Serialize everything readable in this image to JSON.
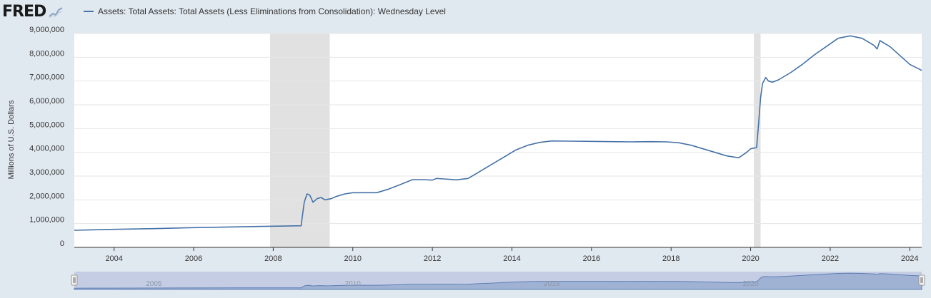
{
  "brand": {
    "logo_text": "FRED",
    "logo_icon": "chart-line-icon"
  },
  "chart_data": {
    "type": "line",
    "title": "",
    "legend": [
      "Assets: Total Assets: Total Assets (Less Eliminations from Consolidation): Wednesday Level"
    ],
    "legend_placement": "top-left",
    "xlabel": "",
    "ylabel": "Millions of U.S. Dollars",
    "xlim": [
      2003.0,
      2024.3
    ],
    "ylim": [
      0,
      9000000
    ],
    "grid": true,
    "y_ticks": [
      "0",
      "1,000,000",
      "2,000,000",
      "3,000,000",
      "4,000,000",
      "5,000,000",
      "6,000,000",
      "7,000,000",
      "8,000,000",
      "9,000,000"
    ],
    "x_ticks": [
      "2004",
      "2006",
      "2008",
      "2010",
      "2012",
      "2014",
      "2016",
      "2018",
      "2020",
      "2022",
      "2024"
    ],
    "recessions": [
      [
        2007.92,
        2009.42
      ],
      [
        2020.08,
        2020.25
      ]
    ],
    "series": [
      {
        "name": "Assets: Total Assets: Total Assets (Less Eliminations from Consolidation): Wednesday Level",
        "color": "#4572a7",
        "x": [
          2003.0,
          2004.0,
          2005.0,
          2006.0,
          2007.0,
          2008.0,
          2008.7,
          2008.78,
          2008.85,
          2008.92,
          2009.0,
          2009.1,
          2009.2,
          2009.3,
          2009.45,
          2009.6,
          2009.8,
          2010.0,
          2010.3,
          2010.6,
          2010.9,
          2011.2,
          2011.5,
          2011.8,
          2012.0,
          2012.1,
          2012.3,
          2012.6,
          2012.9,
          2013.2,
          2013.5,
          2013.8,
          2014.1,
          2014.4,
          2014.7,
          2015.0,
          2015.5,
          2016.0,
          2016.5,
          2017.0,
          2017.5,
          2017.9,
          2018.2,
          2018.5,
          2018.8,
          2019.1,
          2019.4,
          2019.7,
          2019.9,
          2020.0,
          2020.15,
          2020.2,
          2020.25,
          2020.3,
          2020.38,
          2020.45,
          2020.55,
          2020.7,
          2021.0,
          2021.3,
          2021.6,
          2021.9,
          2022.2,
          2022.5,
          2022.8,
          2023.1,
          2023.18,
          2023.25,
          2023.5,
          2023.8,
          2024.0,
          2024.3
        ],
        "values": [
          720000,
          760000,
          790000,
          830000,
          860000,
          890000,
          910000,
          1900000,
          2250000,
          2200000,
          1900000,
          2050000,
          2100000,
          2000000,
          2050000,
          2150000,
          2250000,
          2300000,
          2300000,
          2300000,
          2450000,
          2650000,
          2850000,
          2850000,
          2830000,
          2900000,
          2880000,
          2840000,
          2900000,
          3200000,
          3500000,
          3800000,
          4100000,
          4300000,
          4420000,
          4480000,
          4470000,
          4460000,
          4450000,
          4440000,
          4450000,
          4440000,
          4400000,
          4300000,
          4150000,
          4000000,
          3850000,
          3770000,
          4000000,
          4150000,
          4200000,
          5200000,
          6300000,
          6900000,
          7150000,
          7000000,
          6950000,
          7050000,
          7350000,
          7700000,
          8100000,
          8450000,
          8800000,
          8900000,
          8800000,
          8500000,
          8350000,
          8700000,
          8450000,
          8000000,
          7700000,
          7450000
        ]
      }
    ]
  },
  "navigator": {
    "labels": [
      "2005",
      "2010",
      "2015",
      "2020"
    ],
    "handle_left": "[]",
    "handle_right": "[]"
  }
}
